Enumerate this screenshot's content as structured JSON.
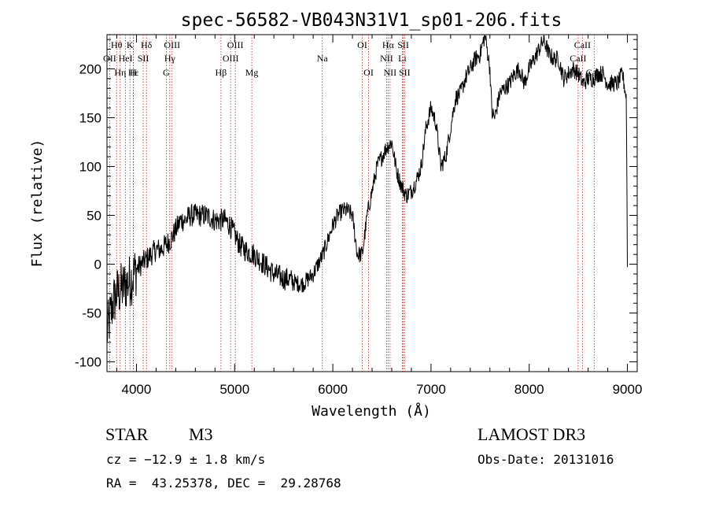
{
  "chart_data": {
    "type": "line",
    "title": "spec-56582-VB043N31V1_sp01-206.fits",
    "xlabel": "Wavelength (Å)",
    "ylabel": "Flux (relative)",
    "xlim": [
      3700,
      9100
    ],
    "ylim": [
      -110,
      235
    ],
    "xticks": [
      4000,
      5000,
      6000,
      7000,
      8000,
      9000
    ],
    "yticks": [
      -100,
      -50,
      0,
      50,
      100,
      150,
      200
    ],
    "spectrum_anchors": {
      "x": [
        3700,
        3730,
        3760,
        3800,
        3850,
        3900,
        3950,
        4000,
        4050,
        4100,
        4150,
        4200,
        4250,
        4300,
        4350,
        4400,
        4450,
        4500,
        4550,
        4600,
        4650,
        4700,
        4750,
        4800,
        4850,
        4900,
        4950,
        5000,
        5050,
        5100,
        5150,
        5200,
        5250,
        5300,
        5350,
        5400,
        5450,
        5500,
        5550,
        5600,
        5650,
        5700,
        5750,
        5800,
        5850,
        5900,
        5950,
        6000,
        6050,
        6100,
        6150,
        6200,
        6250,
        6300,
        6350,
        6400,
        6450,
        6500,
        6550,
        6600,
        6650,
        6700,
        6750,
        6800,
        6850,
        6900,
        6950,
        7000,
        7050,
        7100,
        7150,
        7200,
        7250,
        7300,
        7350,
        7400,
        7450,
        7500,
        7550,
        7600,
        7620,
        7650,
        7700,
        7750,
        7800,
        7850,
        7900,
        7950,
        8000,
        8050,
        8100,
        8150,
        8200,
        8250,
        8300,
        8350,
        8400,
        8450,
        8500,
        8550,
        8600,
        8650,
        8700,
        8750,
        8800,
        8850,
        8900,
        8950,
        8990,
        9000
      ],
      "y": [
        -70,
        -55,
        -40,
        -30,
        -25,
        -20,
        -15,
        -5,
        0,
        5,
        10,
        15,
        15,
        20,
        25,
        35,
        45,
        45,
        50,
        50,
        50,
        50,
        48,
        45,
        45,
        45,
        40,
        30,
        20,
        15,
        12,
        10,
        5,
        0,
        -5,
        -10,
        -12,
        -15,
        -15,
        -18,
        -20,
        -20,
        -15,
        -10,
        0,
        10,
        25,
        40,
        50,
        55,
        55,
        50,
        10,
        10,
        50,
        75,
        100,
        110,
        120,
        125,
        95,
        80,
        70,
        75,
        85,
        100,
        140,
        160,
        145,
        100,
        110,
        140,
        170,
        175,
        190,
        200,
        210,
        215,
        235,
        200,
        155,
        150,
        175,
        180,
        185,
        195,
        200,
        185,
        200,
        210,
        220,
        230,
        215,
        210,
        210,
        190,
        195,
        200,
        195,
        185,
        190,
        190,
        195,
        195,
        185,
        185,
        185,
        195,
        170,
        0
      ],
      "noise": "random jitter approx ±15 added to anchors"
    },
    "emission_lines": [
      {
        "label": "Hθ",
        "x": 3798,
        "row": 1
      },
      {
        "label": "K",
        "x": 3934,
        "row": 1
      },
      {
        "label": "Hδ",
        "x": 4102,
        "row": 1
      },
      {
        "label": "OIII",
        "x": 4363,
        "row": 1
      },
      {
        "label": "OIII",
        "x": 5007,
        "row": 1
      },
      {
        "label": "OI",
        "x": 6300,
        "row": 1
      },
      {
        "label": "Hα",
        "x": 6563,
        "row": 1
      },
      {
        "label": "SII",
        "x": 6717,
        "row": 1
      },
      {
        "label": "CaII",
        "x": 8542,
        "row": 1
      },
      {
        "label": "OII",
        "x": 3727,
        "row": 2
      },
      {
        "label": "HeI",
        "x": 3889,
        "row": 2
      },
      {
        "label": "SII",
        "x": 4069,
        "row": 2
      },
      {
        "label": "Hγ",
        "x": 4340,
        "row": 2
      },
      {
        "label": "OIII",
        "x": 4959,
        "row": 2
      },
      {
        "label": "Na",
        "x": 5893,
        "row": 2
      },
      {
        "label": "NII",
        "x": 6548,
        "row": 2
      },
      {
        "label": "Li",
        "x": 6708,
        "row": 2
      },
      {
        "label": "CaII",
        "x": 8498,
        "row": 2
      },
      {
        "label": "Hε",
        "x": 3970,
        "row": 3
      },
      {
        "label": "Hη",
        "x": 3835,
        "row": 3
      },
      {
        "label": "H",
        "x": 3968,
        "row": 3
      },
      {
        "label": "G",
        "x": 4304,
        "row": 3
      },
      {
        "label": "Hβ",
        "x": 4861,
        "row": 3
      },
      {
        "label": "Mg",
        "x": 5175,
        "row": 3
      },
      {
        "label": "OI",
        "x": 6364,
        "row": 3
      },
      {
        "label": "NII",
        "x": 6583,
        "row": 3
      },
      {
        "label": "SII",
        "x": 6731,
        "row": 3
      },
      {
        "label": "CaII",
        "x": 8662,
        "row": 3
      }
    ]
  },
  "info": {
    "class": "STAR",
    "subclass": "M3",
    "survey": "LAMOST DR3",
    "redshift": "cz = −12.9 ± 1.8 km/s",
    "obs_date": "Obs-Date: 20131016",
    "coords": "RA =  43.25378, DEC =  29.28768"
  }
}
